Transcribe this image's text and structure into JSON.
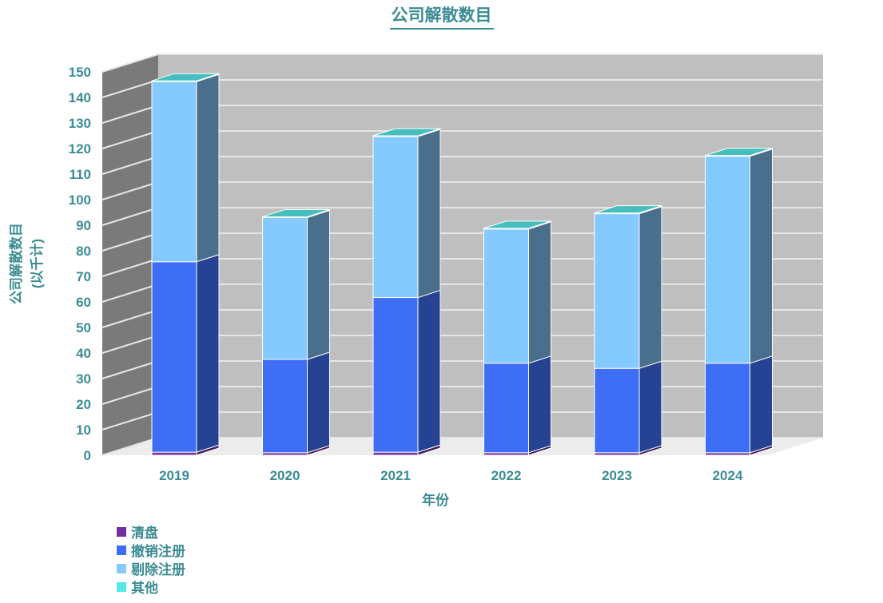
{
  "chart_data": {
    "type": "bar",
    "stacked": true,
    "three_d": true,
    "title": "公司解散数目",
    "xlabel": "年份",
    "ylabel": "公司解散数目",
    "ylabel_sub": "(以千计)",
    "ylim": [
      0,
      150
    ],
    "yticks": [
      0,
      10,
      20,
      30,
      40,
      50,
      60,
      70,
      80,
      90,
      100,
      110,
      120,
      130,
      140,
      150
    ],
    "categories": [
      "2019",
      "2020",
      "2021",
      "2022",
      "2023",
      "2024"
    ],
    "grid": true,
    "legend_position": "bottom-left",
    "series": [
      {
        "name": "清盘",
        "color": "#7030a0",
        "values": [
          1.2,
          1.0,
          1.2,
          1.0,
          1.0,
          1.0
        ]
      },
      {
        "name": "撤销注册",
        "color": "#3d6ef5",
        "values": [
          74.5,
          36.5,
          60.5,
          35.0,
          33.0,
          35.0
        ]
      },
      {
        "name": "剔除注册",
        "color": "#84caff",
        "values": [
          70.5,
          55.5,
          63.0,
          52.5,
          60.5,
          81.0
        ]
      },
      {
        "name": "其他",
        "color": "#55e8e8",
        "values": [
          0.3,
          0.3,
          0.3,
          0.3,
          0.3,
          0.3
        ]
      }
    ]
  }
}
